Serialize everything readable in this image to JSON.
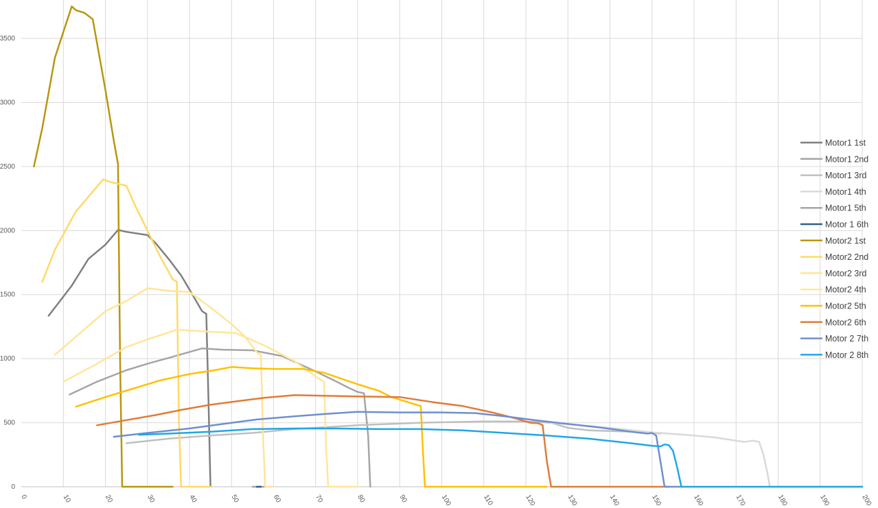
{
  "chart_data": {
    "type": "line",
    "title": "",
    "xlabel": "",
    "ylabel": "",
    "xlim": [
      0,
      200
    ],
    "ylim": [
      0,
      3800
    ],
    "x_ticks": [
      0,
      10,
      20,
      30,
      40,
      50,
      60,
      70,
      80,
      90,
      100,
      110,
      120,
      130,
      140,
      150,
      160,
      170,
      180,
      190,
      200
    ],
    "y_ticks": [
      0,
      500,
      1000,
      1500,
      2000,
      2500,
      3000,
      3500
    ],
    "grid": true,
    "legend_position": "right",
    "series": [
      {
        "name": "Motor1 1st",
        "color": "#7f7f7f",
        "points": [
          [
            6.5,
            1335
          ],
          [
            12,
            1570
          ],
          [
            16,
            1780
          ],
          [
            20,
            1890
          ],
          [
            23,
            2005
          ],
          [
            25,
            1990
          ],
          [
            28,
            1975
          ],
          [
            30,
            1965
          ],
          [
            32,
            1900
          ],
          [
            35,
            1780
          ],
          [
            38,
            1650
          ],
          [
            40,
            1540
          ],
          [
            43,
            1370
          ],
          [
            44,
            1350
          ],
          [
            44.5,
            700
          ],
          [
            45,
            0
          ]
        ]
      },
      {
        "name": "Motor1 2nd",
        "color": "#a5a5a5",
        "points": [
          [
            11.5,
            720
          ],
          [
            18,
            820
          ],
          [
            25,
            910
          ],
          [
            30,
            960
          ],
          [
            36,
            1015
          ],
          [
            43,
            1080
          ],
          [
            48,
            1070
          ],
          [
            55,
            1065
          ],
          [
            62,
            1020
          ],
          [
            70,
            900
          ],
          [
            75,
            820
          ],
          [
            78,
            770
          ],
          [
            80,
            740
          ],
          [
            81.5,
            730
          ],
          [
            82.5,
            400
          ],
          [
            83,
            0
          ]
        ]
      },
      {
        "name": "Motor1 3rd",
        "color": "#bfbfbf",
        "points": [
          [
            25,
            340
          ],
          [
            35,
            375
          ],
          [
            45,
            400
          ],
          [
            55,
            420
          ],
          [
            65,
            450
          ],
          [
            80,
            480
          ],
          [
            95,
            500
          ],
          [
            110,
            510
          ],
          [
            120,
            510
          ],
          [
            126,
            500
          ],
          [
            130,
            460
          ],
          [
            135,
            440
          ],
          [
            145,
            430
          ],
          [
            150,
            420
          ],
          [
            152,
            415
          ]
        ]
      },
      {
        "name": "Motor1 4th",
        "color": "#d9d9d9",
        "points": [
          [
            126,
            500
          ],
          [
            140,
            460
          ],
          [
            150,
            425
          ],
          [
            160,
            400
          ],
          [
            165,
            385
          ],
          [
            172,
            350
          ],
          [
            174,
            360
          ],
          [
            175.5,
            350
          ],
          [
            176.5,
            250
          ],
          [
            177.5,
            100
          ],
          [
            178,
            0
          ],
          [
            200,
            0
          ]
        ]
      },
      {
        "name": "Motor1 5th",
        "color": "#a5a5a5",
        "points": [
          [
            55,
            0
          ],
          [
            58,
            0
          ]
        ]
      },
      {
        "name": "Motor 1 6th",
        "color": "#2e5f8a",
        "points": [
          [
            56,
            0
          ],
          [
            57,
            0
          ]
        ]
      },
      {
        "name": "Motor2 1st",
        "color": "#b8960f",
        "points": [
          [
            3,
            2500
          ],
          [
            5,
            2800
          ],
          [
            8,
            3350
          ],
          [
            12,
            3750
          ],
          [
            13,
            3720
          ],
          [
            15,
            3700
          ],
          [
            17,
            3650
          ],
          [
            20,
            3100
          ],
          [
            22,
            2700
          ],
          [
            23,
            2520
          ],
          [
            23.5,
            1000
          ],
          [
            24,
            0
          ],
          [
            36,
            0
          ]
        ]
      },
      {
        "name": "Motor2 2nd",
        "color": "#ffd966",
        "points": [
          [
            5,
            1600
          ],
          [
            8,
            1850
          ],
          [
            13,
            2150
          ],
          [
            19.5,
            2400
          ],
          [
            21,
            2380
          ],
          [
            25,
            2350
          ],
          [
            27,
            2200
          ],
          [
            30,
            2000
          ],
          [
            33,
            1800
          ],
          [
            36,
            1620
          ],
          [
            37,
            1600
          ],
          [
            37.5,
            500
          ],
          [
            38,
            0
          ],
          [
            45,
            0
          ]
        ]
      },
      {
        "name": "Motor2 3rd",
        "color": "#ffe599",
        "points": [
          [
            8,
            1030
          ],
          [
            14,
            1200
          ],
          [
            20,
            1370
          ],
          [
            25,
            1450
          ],
          [
            30,
            1550
          ],
          [
            35,
            1530
          ],
          [
            40,
            1520
          ],
          [
            45,
            1400
          ],
          [
            50,
            1270
          ],
          [
            53,
            1180
          ],
          [
            56,
            1050
          ],
          [
            57,
            1030
          ],
          [
            57.5,
            400
          ],
          [
            58,
            0
          ],
          [
            60,
            0
          ]
        ]
      },
      {
        "name": "Motor2 4th",
        "color": "#ffe699",
        "points": [
          [
            10,
            820
          ],
          [
            18,
            960
          ],
          [
            25,
            1090
          ],
          [
            30,
            1150
          ],
          [
            37,
            1225
          ],
          [
            45,
            1210
          ],
          [
            51,
            1200
          ],
          [
            58,
            1100
          ],
          [
            65,
            980
          ],
          [
            70,
            860
          ],
          [
            72,
            820
          ],
          [
            72.5,
            300
          ],
          [
            73,
            0
          ],
          [
            80,
            0
          ]
        ]
      },
      {
        "name": "Motor2 5th",
        "color": "#ffc000",
        "points": [
          [
            13,
            625
          ],
          [
            20,
            700
          ],
          [
            27,
            770
          ],
          [
            33,
            830
          ],
          [
            40,
            880
          ],
          [
            46,
            910
          ],
          [
            50,
            935
          ],
          [
            55,
            925
          ],
          [
            60,
            920
          ],
          [
            67,
            920
          ],
          [
            72,
            890
          ],
          [
            80,
            800
          ],
          [
            85,
            750
          ],
          [
            88,
            700
          ],
          [
            93,
            650
          ],
          [
            94,
            640
          ],
          [
            95,
            630
          ],
          [
            95.5,
            300
          ],
          [
            96,
            0
          ],
          [
            125,
            0
          ]
        ]
      },
      {
        "name": "Motor2 6th",
        "color": "#e07b39",
        "points": [
          [
            18,
            480
          ],
          [
            25,
            520
          ],
          [
            32,
            560
          ],
          [
            38,
            600
          ],
          [
            45,
            640
          ],
          [
            52,
            670
          ],
          [
            58,
            695
          ],
          [
            65,
            715
          ],
          [
            72,
            710
          ],
          [
            80,
            705
          ],
          [
            90,
            700
          ],
          [
            98,
            660
          ],
          [
            105,
            630
          ],
          [
            112,
            580
          ],
          [
            118,
            530
          ],
          [
            121,
            500
          ],
          [
            123,
            495
          ],
          [
            124,
            480
          ],
          [
            125,
            200
          ],
          [
            126,
            0
          ],
          [
            154,
            0
          ]
        ]
      },
      {
        "name": "Motor 2 7th",
        "color": "#6f8fce",
        "points": [
          [
            22,
            390
          ],
          [
            30,
            420
          ],
          [
            40,
            455
          ],
          [
            48,
            490
          ],
          [
            56,
            525
          ],
          [
            65,
            550
          ],
          [
            73,
            570
          ],
          [
            80,
            585
          ],
          [
            90,
            580
          ],
          [
            100,
            580
          ],
          [
            108,
            575
          ],
          [
            115,
            550
          ],
          [
            122,
            520
          ],
          [
            130,
            490
          ],
          [
            137,
            465
          ],
          [
            145,
            430
          ],
          [
            149,
            415
          ],
          [
            150,
            420
          ],
          [
            151,
            400
          ],
          [
            152,
            200
          ],
          [
            153,
            0
          ],
          [
            157,
            0
          ]
        ]
      },
      {
        "name": "Motor 2 8th",
        "color": "#1fa6e6",
        "points": [
          [
            28,
            405
          ],
          [
            35,
            415
          ],
          [
            45,
            430
          ],
          [
            55,
            450
          ],
          [
            65,
            455
          ],
          [
            75,
            455
          ],
          [
            85,
            450
          ],
          [
            95,
            450
          ],
          [
            105,
            440
          ],
          [
            115,
            420
          ],
          [
            125,
            400
          ],
          [
            135,
            375
          ],
          [
            145,
            340
          ],
          [
            150,
            320
          ],
          [
            152,
            315
          ],
          [
            153,
            330
          ],
          [
            154,
            325
          ],
          [
            155,
            280
          ],
          [
            156,
            150
          ],
          [
            157,
            0
          ],
          [
            200,
            0
          ]
        ]
      }
    ]
  }
}
